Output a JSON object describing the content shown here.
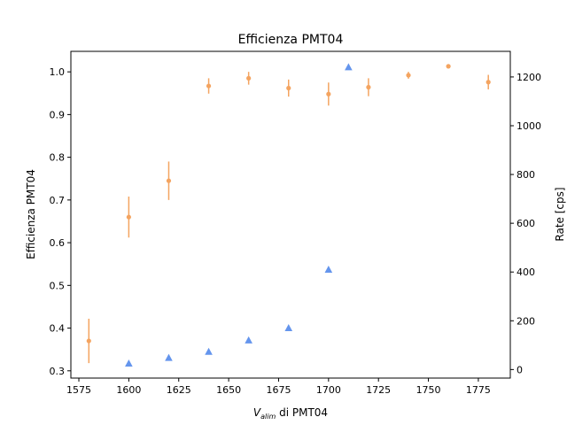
{
  "chart_data": {
    "type": "scatter",
    "title": "Efficienza PMT04",
    "xlabel_main": "V",
    "xlabel_sub": "alim",
    "xlabel_rest": " di PMT04",
    "ylabel": "Efficienza PMT04",
    "y2label": "Rate [cps]",
    "xlim": [
      1571,
      1791
    ],
    "ylim": [
      0.283,
      1.048
    ],
    "y2lim": [
      -35,
      1305
    ],
    "xticks": [
      1575,
      1600,
      1625,
      1650,
      1675,
      1700,
      1725,
      1750,
      1775
    ],
    "yticks": [
      0.3,
      0.4,
      0.5,
      0.6,
      0.7,
      0.8,
      0.9,
      1.0
    ],
    "y2ticks": [
      0,
      200,
      400,
      600,
      800,
      1000,
      1200
    ],
    "grid": false,
    "colors": {
      "efficiency": "#f4a460",
      "rate": "#6495ed"
    },
    "series": [
      {
        "axis": "left",
        "marker": "circle",
        "x": [
          1580,
          1600,
          1620,
          1640,
          1660,
          1680,
          1700,
          1720,
          1740,
          1760,
          1780
        ],
        "y": [
          0.37,
          0.66,
          0.745,
          0.967,
          0.985,
          0.962,
          0.948,
          0.964,
          0.992,
          1.013,
          0.976
        ],
        "yerr": [
          0.052,
          0.048,
          0.045,
          0.018,
          0.015,
          0.02,
          0.027,
          0.021,
          0.008,
          0.003,
          0.017
        ]
      },
      {
        "axis": "right",
        "marker": "triangle",
        "x": [
          1600,
          1620,
          1640,
          1660,
          1680,
          1700,
          1710
        ],
        "y": [
          25,
          48,
          73,
          120,
          170,
          410,
          1240
        ]
      }
    ]
  }
}
